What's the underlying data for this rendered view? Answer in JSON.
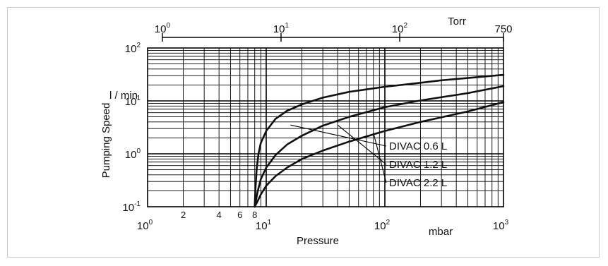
{
  "chart_data": {
    "type": "line",
    "title": "",
    "xlabel": "Pressure",
    "ylabel": "Pumping Speed",
    "x_unit_bottom": "mbar",
    "x_unit_top": "Torr",
    "y_unit": "l / min",
    "x_scale": "log",
    "y_scale": "log",
    "xlim": [
      1,
      1000
    ],
    "ylim": [
      0.1,
      100
    ],
    "grid": true,
    "x_ticks_major": [
      {
        "value": 1,
        "base": "10",
        "exp": "0"
      },
      {
        "value": 10,
        "base": "10",
        "exp": "1"
      },
      {
        "value": 100,
        "base": "10",
        "exp": "2"
      },
      {
        "value": 1000,
        "base": "10",
        "exp": "3"
      }
    ],
    "x_ticks_minor_labels": [
      {
        "value": 2,
        "label": "2"
      },
      {
        "value": 4,
        "label": "4"
      },
      {
        "value": 6,
        "label": "6"
      },
      {
        "value": 8,
        "label": "8"
      }
    ],
    "y_ticks": [
      {
        "value": 0.1,
        "base": "10",
        "exp": "-1"
      },
      {
        "value": 1,
        "base": "10",
        "exp": "0"
      },
      {
        "value": 10,
        "base": "10",
        "exp": "1"
      },
      {
        "value": 100,
        "base": "10",
        "exp": "2"
      }
    ],
    "top_axis_ticks": [
      {
        "torr": 1,
        "mbar": 1.333,
        "base": "10",
        "exp": "0",
        "label": ""
      },
      {
        "torr": 10,
        "mbar": 13.33,
        "base": "10",
        "exp": "1",
        "label": ""
      },
      {
        "torr": 100,
        "mbar": 133.3,
        "base": "10",
        "exp": "2",
        "label": ""
      },
      {
        "torr": 750,
        "mbar": 1000,
        "base": "",
        "exp": "",
        "label": "750"
      }
    ],
    "series": [
      {
        "name": "DIVAC 0.6 L",
        "x": [
          8,
          8.1,
          8.3,
          8.6,
          9,
          10,
          12,
          15,
          20,
          30,
          50,
          70,
          100,
          200,
          300,
          500,
          1000
        ],
        "y": [
          0.1,
          0.2,
          0.5,
          1.0,
          1.6,
          2.7,
          4.6,
          6.5,
          8.6,
          11.5,
          14.8,
          16.5,
          18.5,
          22,
          24.5,
          27,
          31
        ]
      },
      {
        "name": "DIVAC 1.2 L",
        "x": [
          8,
          8.5,
          9,
          10,
          12,
          15,
          20,
          30,
          50,
          100,
          200,
          500,
          1000
        ],
        "y": [
          0.1,
          0.2,
          0.33,
          0.55,
          0.95,
          1.5,
          2.2,
          3.4,
          5.0,
          7.6,
          10.2,
          14,
          19
        ]
      },
      {
        "name": "DIVAC 2.2 L",
        "x": [
          8,
          8.5,
          9,
          10,
          12,
          15,
          20,
          30,
          50,
          100,
          200,
          500,
          1000
        ],
        "y": [
          0.1,
          0.13,
          0.17,
          0.25,
          0.38,
          0.55,
          0.8,
          1.15,
          1.7,
          2.7,
          4.0,
          6.3,
          9.5
        ]
      }
    ],
    "legend": [
      {
        "series": "DIVAC 0.6 L",
        "anchor_x": 16,
        "anchor_y": 3.5
      },
      {
        "series": "DIVAC 1.2 L",
        "anchor_x": 40,
        "anchor_y": 3.5
      },
      {
        "series": "DIVAC 2.2 L",
        "anchor_x": 80,
        "anchor_y": 2.5
      }
    ]
  }
}
